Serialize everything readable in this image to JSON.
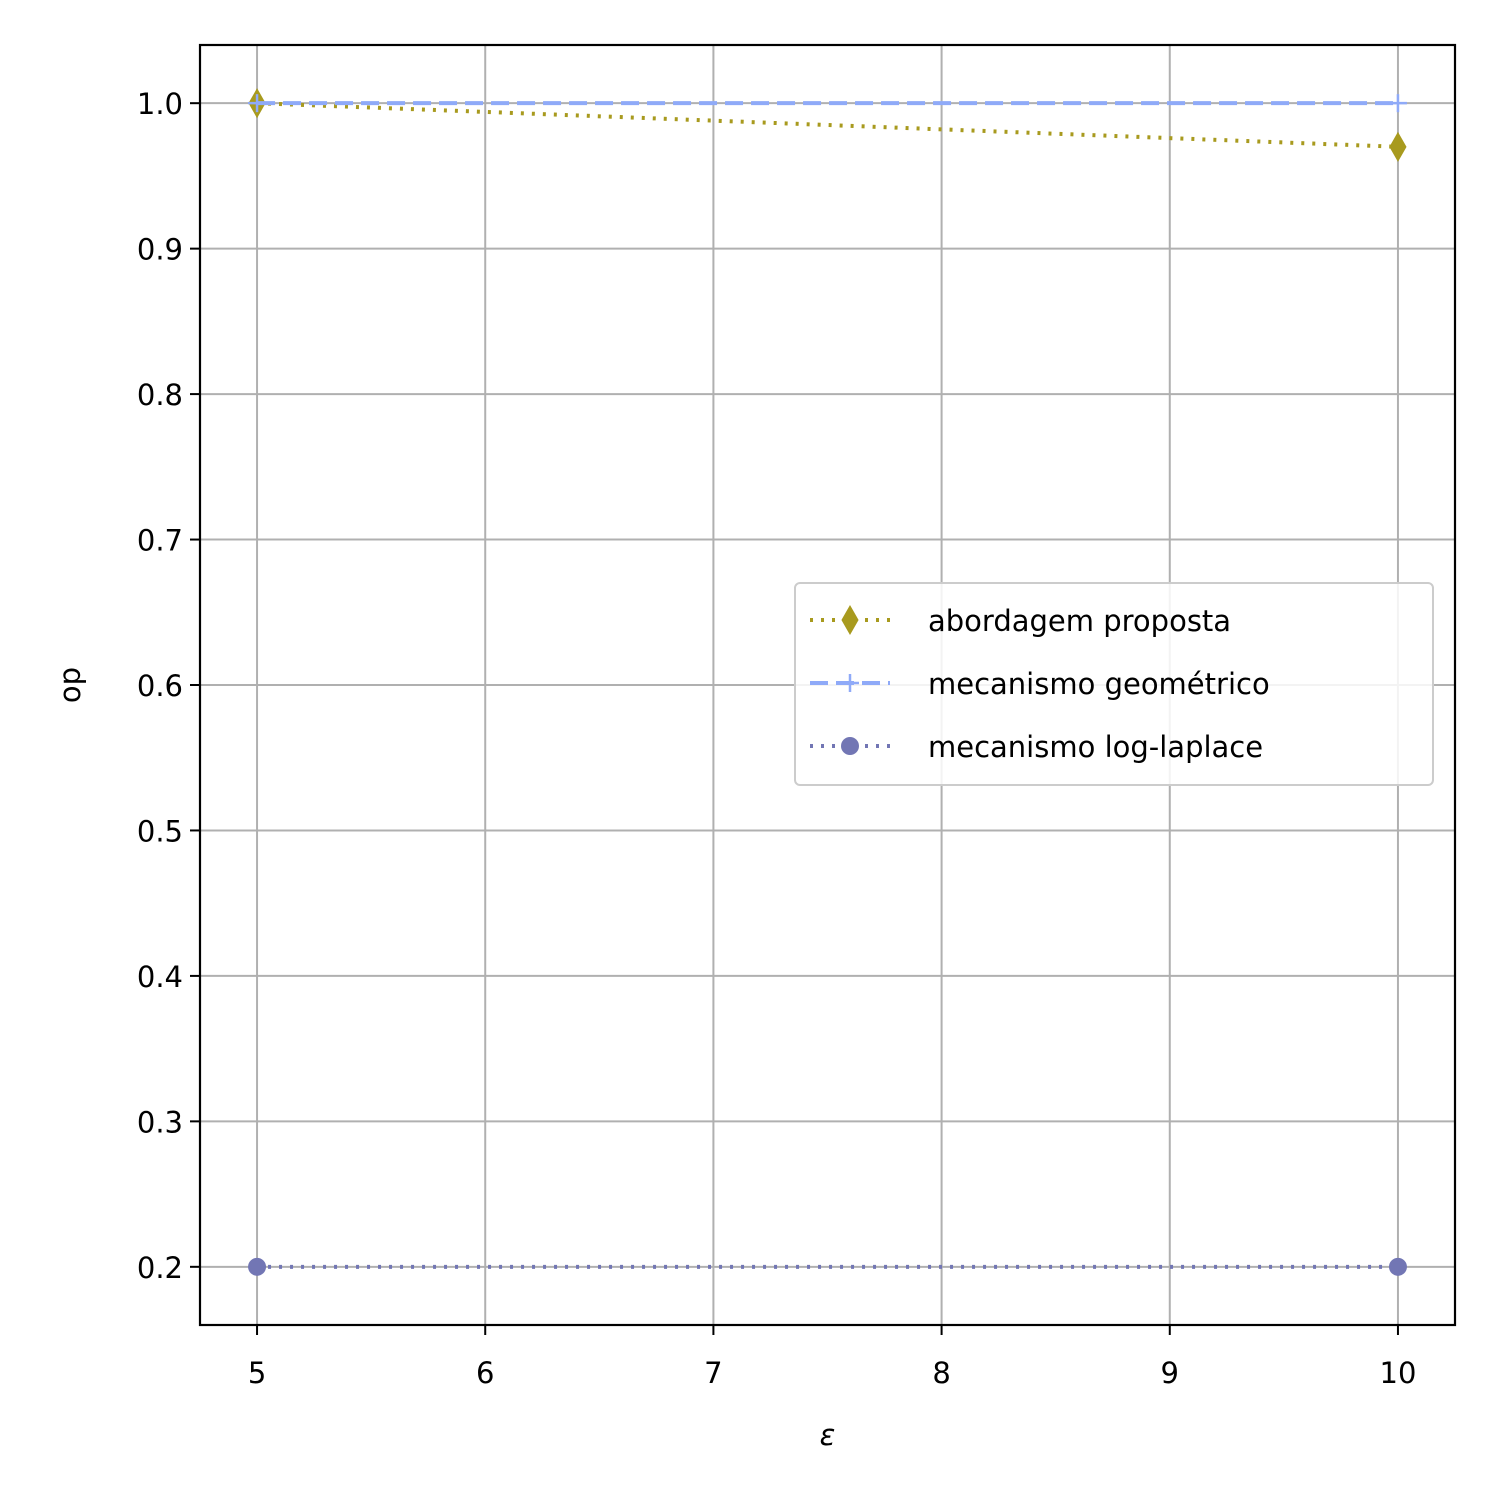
{
  "chart_data": {
    "type": "line",
    "title": "",
    "xlabel": "ε",
    "ylabel": "op",
    "xlim": [
      4.75,
      10.25
    ],
    "ylim": [
      0.16,
      1.04
    ],
    "xticks": [
      5,
      6,
      7,
      8,
      9,
      10
    ],
    "xtick_labels": [
      "5",
      "6",
      "7",
      "8",
      "9",
      "10"
    ],
    "yticks": [
      0.2,
      0.3,
      0.4,
      0.5,
      0.6,
      0.7,
      0.8,
      0.9,
      1.0
    ],
    "ytick_labels": [
      "0.2",
      "0.3",
      "0.4",
      "0.5",
      "0.6",
      "0.7",
      "0.8",
      "0.9",
      "1.0"
    ],
    "grid": true,
    "legend_position": "center-right",
    "series": [
      {
        "name": "abordagem proposta",
        "x": [
          5,
          10
        ],
        "y": [
          1.0,
          0.97
        ],
        "color": "#a89a1e",
        "dash": "dotted",
        "marker": "diamond"
      },
      {
        "name": "mecanismo geométrico",
        "x": [
          5,
          10
        ],
        "y": [
          1.0,
          1.0
        ],
        "color": "#8faaf8",
        "dash": "dashed",
        "marker": "plus"
      },
      {
        "name": "mecanismo log-laplace",
        "x": [
          5,
          10
        ],
        "y": [
          0.2,
          0.2
        ],
        "color": "#7276b4",
        "dash": "dotted",
        "marker": "circle"
      }
    ]
  }
}
